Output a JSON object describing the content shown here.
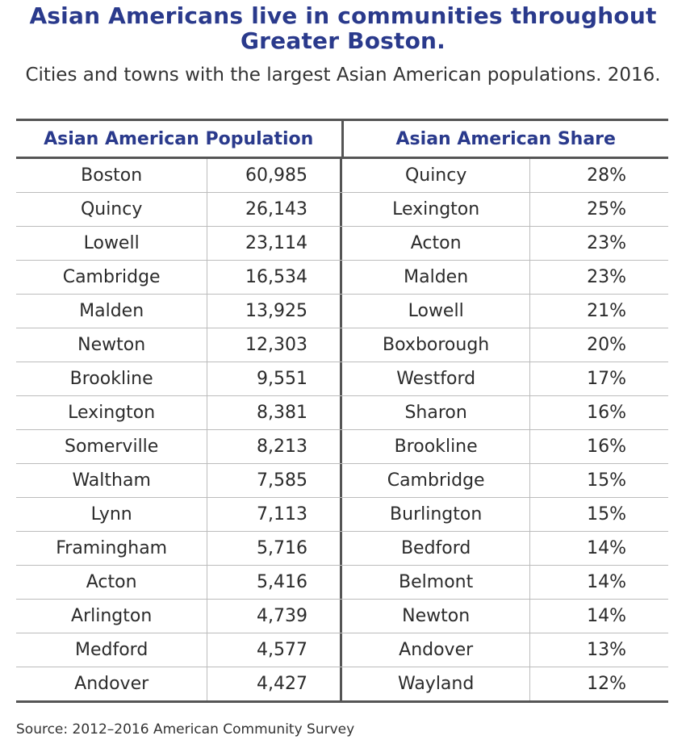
{
  "title": "Asian Americans live in communities throughout Greater Boston.",
  "subtitle": "Cities and towns with the largest Asian American populations. 2016.",
  "table": {
    "header_left": "Asian American Population",
    "header_right": "Asian American Share",
    "rows": [
      {
        "pop_city": "Boston",
        "population": "60,985",
        "share_city": "Quincy",
        "share": "28%"
      },
      {
        "pop_city": "Quincy",
        "population": "26,143",
        "share_city": "Lexington",
        "share": "25%"
      },
      {
        "pop_city": "Lowell",
        "population": "23,114",
        "share_city": "Acton",
        "share": "23%"
      },
      {
        "pop_city": "Cambridge",
        "population": "16,534",
        "share_city": "Malden",
        "share": "23%"
      },
      {
        "pop_city": "Malden",
        "population": "13,925",
        "share_city": "Lowell",
        "share": "21%"
      },
      {
        "pop_city": "Newton",
        "population": "12,303",
        "share_city": "Boxborough",
        "share": "20%"
      },
      {
        "pop_city": "Brookline",
        "population": "9,551",
        "share_city": "Westford",
        "share": "17%"
      },
      {
        "pop_city": "Lexington",
        "population": "8,381",
        "share_city": "Sharon",
        "share": "16%"
      },
      {
        "pop_city": "Somerville",
        "population": "8,213",
        "share_city": "Brookline",
        "share": "16%"
      },
      {
        "pop_city": "Waltham",
        "population": "7,585",
        "share_city": "Cambridge",
        "share": "15%"
      },
      {
        "pop_city": "Lynn",
        "population": "7,113",
        "share_city": "Burlington",
        "share": "15%"
      },
      {
        "pop_city": "Framingham",
        "population": "5,716",
        "share_city": "Bedford",
        "share": "14%"
      },
      {
        "pop_city": "Acton",
        "population": "5,416",
        "share_city": "Belmont",
        "share": "14%"
      },
      {
        "pop_city": "Arlington",
        "population": "4,739",
        "share_city": "Newton",
        "share": "14%"
      },
      {
        "pop_city": "Medford",
        "population": "4,577",
        "share_city": "Andover",
        "share": "13%"
      },
      {
        "pop_city": "Andover",
        "population": "4,427",
        "share_city": "Wayland",
        "share": "12%"
      }
    ]
  },
  "source": "Source: 2012–2016 American Community Survey",
  "colors": {
    "title": "#2a3a8c",
    "rule": "#555555"
  }
}
